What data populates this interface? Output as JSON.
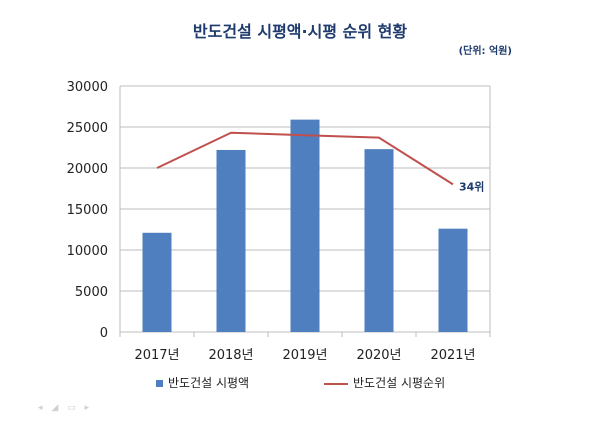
{
  "chart_data": {
    "type": "bar",
    "title": "반도건설 시평액·시평 순위 현황",
    "unit_note": "(단위: 억원)",
    "categories": [
      "2017년",
      "2018년",
      "2019년",
      "2020년",
      "2021년"
    ],
    "y_ticks": [
      "0",
      "5000",
      "10000",
      "15000",
      "20000",
      "25000",
      "30000"
    ],
    "ylim": [
      0,
      30000
    ],
    "grid": true,
    "series": [
      {
        "name": "반도건설 시평액",
        "type": "bar",
        "color": "#4f7fbf",
        "values": [
          12100,
          22200,
          25900,
          22300,
          12600
        ]
      },
      {
        "name": "반도건설 시평순위",
        "type": "line",
        "color": "#c0504d",
        "values": [
          20000,
          24300,
          24000,
          23700,
          18000
        ]
      }
    ],
    "annotations": [
      {
        "text": "34위",
        "category": "2021년",
        "series": "반도건설 시평순위"
      }
    ],
    "legend": "bottom"
  }
}
